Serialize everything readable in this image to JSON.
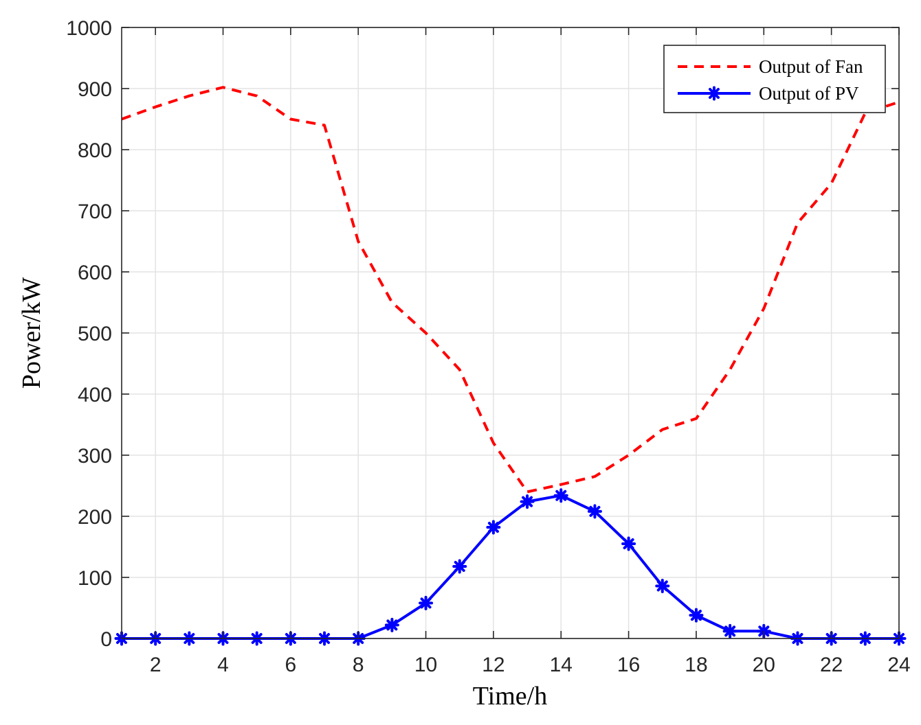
{
  "chart_data": {
    "type": "line",
    "xlabel": "Time/h",
    "ylabel": "Power/kW",
    "xlim": [
      1,
      24
    ],
    "ylim": [
      0,
      1000
    ],
    "xticks": [
      2,
      4,
      6,
      8,
      10,
      12,
      14,
      16,
      18,
      20,
      22,
      24
    ],
    "yticks": [
      0,
      100,
      200,
      300,
      400,
      500,
      600,
      700,
      800,
      900,
      1000
    ],
    "grid": true,
    "legend_position": "top-right",
    "x": [
      1,
      2,
      3,
      4,
      5,
      6,
      7,
      8,
      9,
      10,
      11,
      12,
      13,
      14,
      15,
      16,
      17,
      18,
      19,
      20,
      21,
      22,
      23,
      24
    ],
    "series": [
      {
        "name": "Output of Fan",
        "color": "#ff0000",
        "line_style": "dashed",
        "marker": "none",
        "values": [
          850,
          870,
          888,
          902,
          888,
          850,
          840,
          650,
          550,
          500,
          440,
          320,
          240,
          252,
          265,
          300,
          342,
          360,
          440,
          540,
          680,
          745,
          860,
          878
        ]
      },
      {
        "name": "Output of PV",
        "color": "#0000ff",
        "line_style": "solid",
        "marker": "asterisk",
        "values": [
          0,
          0,
          0,
          0,
          0,
          0,
          0,
          0,
          22,
          58,
          118,
          182,
          224,
          234,
          208,
          155,
          86,
          38,
          12,
          12,
          0,
          0,
          0,
          0
        ]
      }
    ]
  }
}
